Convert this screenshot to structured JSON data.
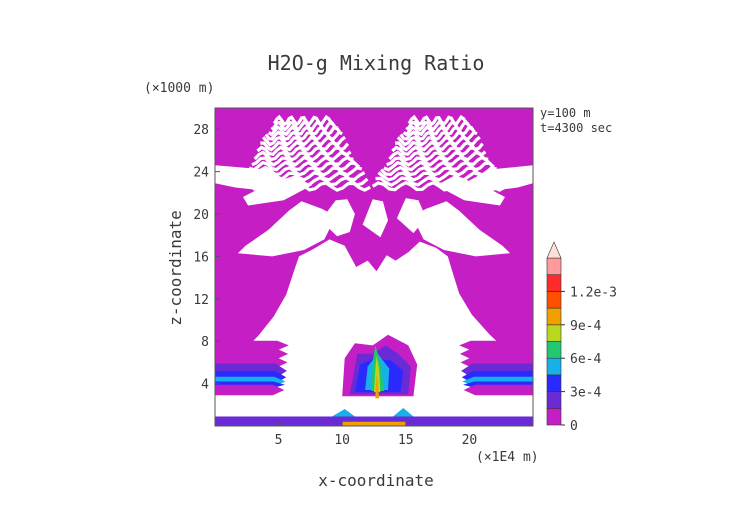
{
  "chart_data": {
    "type": "heatmap",
    "title": "H2O-g Mixing Ratio",
    "xlabel": "x-coordinate",
    "ylabel": "z-coordinate",
    "x_unit": "(×1E4 m)",
    "y_unit": "(×1000 m)",
    "annotations": [
      "y=100 m",
      "t=4300 sec"
    ],
    "xlim": [
      0,
      25
    ],
    "ylim": [
      0,
      30
    ],
    "x_ticks": [
      5,
      10,
      15,
      20
    ],
    "y_ticks": [
      4,
      8,
      12,
      16,
      20,
      24,
      28
    ],
    "colorbar": {
      "levels": [
        0,
        0.00015,
        0.0003,
        0.00045,
        0.0006,
        0.00075,
        0.0009,
        0.00105,
        0.0012
      ],
      "tick_labels": [
        {
          "value": 0,
          "label": "0"
        },
        {
          "value": 0.0003,
          "label": "3e-4"
        },
        {
          "value": 0.0006,
          "label": "6e-4"
        },
        {
          "value": 0.0009,
          "label": "9e-4"
        },
        {
          "value": 0.0012,
          "label": "1.2e-3"
        }
      ],
      "colors": [
        "#c41ec4",
        "#6a2ad6",
        "#2a2aff",
        "#18b0e8",
        "#22c870",
        "#b8d820",
        "#f0a000",
        "#ff5000",
        "#ff2a2a",
        "#ff9a9a",
        "#ffe0d8"
      ]
    },
    "grid": false,
    "background_color": "#c41ec4"
  }
}
